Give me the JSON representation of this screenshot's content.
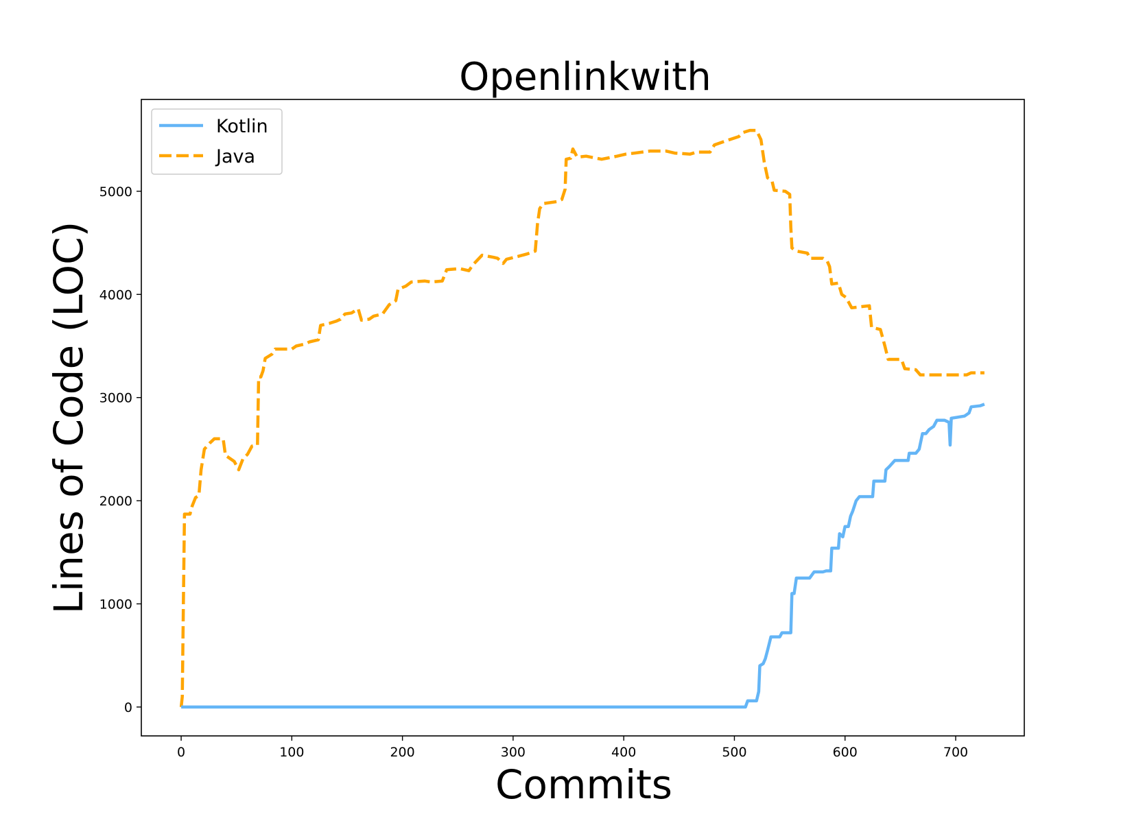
{
  "chart_data": {
    "type": "line",
    "title": "Openlinkwith",
    "xlabel": "Commits",
    "ylabel": "Lines of Code (LOC)",
    "xlim": [
      -36,
      762
    ],
    "ylim": [
      -280,
      5890
    ],
    "xticks": [
      0,
      100,
      200,
      300,
      400,
      500,
      600,
      700
    ],
    "yticks": [
      0,
      1000,
      2000,
      3000,
      4000,
      5000
    ],
    "grid": false,
    "legend_position": "top-left",
    "series": [
      {
        "name": "Kotlin",
        "color": "#64b5f6",
        "style": "solid",
        "points": [
          [
            0,
            0
          ],
          [
            510,
            0
          ],
          [
            512,
            60
          ],
          [
            520,
            60
          ],
          [
            522,
            150
          ],
          [
            523,
            400
          ],
          [
            526,
            420
          ],
          [
            528,
            470
          ],
          [
            530,
            550
          ],
          [
            533,
            680
          ],
          [
            541,
            680
          ],
          [
            543,
            720
          ],
          [
            551,
            720
          ],
          [
            552,
            1100
          ],
          [
            554,
            1100
          ],
          [
            556,
            1250
          ],
          [
            568,
            1250
          ],
          [
            572,
            1310
          ],
          [
            580,
            1310
          ],
          [
            583,
            1320
          ],
          [
            587,
            1320
          ],
          [
            588,
            1540
          ],
          [
            594,
            1540
          ],
          [
            595,
            1680
          ],
          [
            598,
            1650
          ],
          [
            600,
            1750
          ],
          [
            603,
            1750
          ],
          [
            605,
            1850
          ],
          [
            607,
            1900
          ],
          [
            610,
            2000
          ],
          [
            613,
            2040
          ],
          [
            625,
            2040
          ],
          [
            626,
            2190
          ],
          [
            636,
            2190
          ],
          [
            637,
            2300
          ],
          [
            640,
            2330
          ],
          [
            645,
            2390
          ],
          [
            657,
            2390
          ],
          [
            658,
            2460
          ],
          [
            664,
            2460
          ],
          [
            667,
            2500
          ],
          [
            670,
            2650
          ],
          [
            673,
            2650
          ],
          [
            676,
            2690
          ],
          [
            680,
            2720
          ],
          [
            683,
            2780
          ],
          [
            690,
            2780
          ],
          [
            694,
            2760
          ],
          [
            695,
            2540
          ],
          [
            696,
            2800
          ],
          [
            708,
            2820
          ],
          [
            712,
            2850
          ],
          [
            714,
            2910
          ],
          [
            722,
            2920
          ],
          [
            726,
            2935
          ]
        ]
      },
      {
        "name": "Java",
        "color": "#ffa500",
        "style": "dashed",
        "points": [
          [
            0,
            0
          ],
          [
            1,
            100
          ],
          [
            2,
            1000
          ],
          [
            3,
            1870
          ],
          [
            8,
            1870
          ],
          [
            10,
            1950
          ],
          [
            13,
            2030
          ],
          [
            16,
            2050
          ],
          [
            18,
            2300
          ],
          [
            21,
            2500
          ],
          [
            26,
            2560
          ],
          [
            30,
            2600
          ],
          [
            38,
            2600
          ],
          [
            40,
            2440
          ],
          [
            48,
            2380
          ],
          [
            52,
            2300
          ],
          [
            56,
            2410
          ],
          [
            60,
            2450
          ],
          [
            64,
            2530
          ],
          [
            69,
            2540
          ],
          [
            70,
            3200
          ],
          [
            72,
            3200
          ],
          [
            74,
            3260
          ],
          [
            76,
            3380
          ],
          [
            82,
            3420
          ],
          [
            85,
            3470
          ],
          [
            100,
            3470
          ],
          [
            104,
            3500
          ],
          [
            112,
            3520
          ],
          [
            116,
            3540
          ],
          [
            124,
            3560
          ],
          [
            126,
            3700
          ],
          [
            134,
            3720
          ],
          [
            140,
            3740
          ],
          [
            144,
            3760
          ],
          [
            148,
            3810
          ],
          [
            154,
            3820
          ],
          [
            160,
            3860
          ],
          [
            163,
            3750
          ],
          [
            170,
            3760
          ],
          [
            174,
            3790
          ],
          [
            182,
            3810
          ],
          [
            188,
            3900
          ],
          [
            194,
            3940
          ],
          [
            196,
            4050
          ],
          [
            203,
            4080
          ],
          [
            208,
            4120
          ],
          [
            220,
            4130
          ],
          [
            226,
            4120
          ],
          [
            236,
            4130
          ],
          [
            240,
            4240
          ],
          [
            252,
            4250
          ],
          [
            260,
            4230
          ],
          [
            264,
            4290
          ],
          [
            272,
            4380
          ],
          [
            282,
            4360
          ],
          [
            286,
            4350
          ],
          [
            291,
            4300
          ],
          [
            294,
            4340
          ],
          [
            305,
            4370
          ],
          [
            312,
            4390
          ],
          [
            320,
            4420
          ],
          [
            322,
            4680
          ],
          [
            324,
            4830
          ],
          [
            327,
            4880
          ],
          [
            340,
            4900
          ],
          [
            344,
            4920
          ],
          [
            347,
            5020
          ],
          [
            348,
            5310
          ],
          [
            352,
            5320
          ],
          [
            354,
            5410
          ],
          [
            358,
            5330
          ],
          [
            366,
            5340
          ],
          [
            380,
            5310
          ],
          [
            394,
            5340
          ],
          [
            402,
            5360
          ],
          [
            410,
            5370
          ],
          [
            424,
            5390
          ],
          [
            438,
            5390
          ],
          [
            446,
            5370
          ],
          [
            460,
            5360
          ],
          [
            466,
            5380
          ],
          [
            478,
            5380
          ],
          [
            482,
            5450
          ],
          [
            490,
            5480
          ],
          [
            504,
            5530
          ],
          [
            508,
            5570
          ],
          [
            514,
            5590
          ],
          [
            520,
            5590
          ],
          [
            524,
            5500
          ],
          [
            527,
            5280
          ],
          [
            530,
            5130
          ],
          [
            534,
            5100
          ],
          [
            536,
            5010
          ],
          [
            546,
            5000
          ],
          [
            550,
            4970
          ],
          [
            551,
            4650
          ],
          [
            552,
            4450
          ],
          [
            556,
            4420
          ],
          [
            566,
            4400
          ],
          [
            568,
            4350
          ],
          [
            580,
            4350
          ],
          [
            584,
            4320
          ],
          [
            586,
            4270
          ],
          [
            588,
            4100
          ],
          [
            594,
            4110
          ],
          [
            597,
            4000
          ],
          [
            601,
            3970
          ],
          [
            606,
            3870
          ],
          [
            622,
            3890
          ],
          [
            624,
            3680
          ],
          [
            632,
            3660
          ],
          [
            636,
            3500
          ],
          [
            639,
            3370
          ],
          [
            651,
            3370
          ],
          [
            654,
            3280
          ],
          [
            664,
            3270
          ],
          [
            668,
            3220
          ],
          [
            710,
            3220
          ],
          [
            714,
            3240
          ],
          [
            726,
            3240
          ]
        ]
      }
    ]
  }
}
